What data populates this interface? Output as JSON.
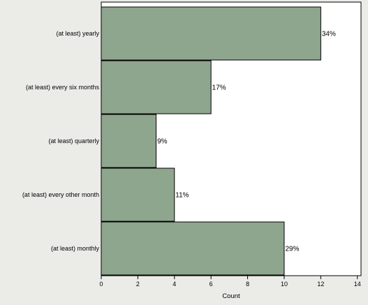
{
  "chart_data": {
    "type": "bar",
    "orientation": "horizontal",
    "categories": [
      "(at least) yearly",
      "(at least) every six months",
      "(at least) quarterly",
      "(at least) every other month",
      "(at least) monthly"
    ],
    "values": [
      12,
      6,
      3,
      4,
      10
    ],
    "data_labels": [
      "34%",
      "17%",
      "9%",
      "11%",
      "29%"
    ],
    "title": "",
    "xlabel": "Count",
    "ylabel": "",
    "xlim": [
      0,
      14.2
    ],
    "xticks": [
      0,
      2,
      4,
      6,
      8,
      10,
      12,
      14
    ],
    "xtick_labels": [
      "0",
      "2",
      "4",
      "6",
      "8",
      "10",
      "12",
      "14"
    ],
    "grid": false,
    "legend": "none",
    "colors": {
      "page_background": "#ebebe8",
      "plot_background": "#ffffff",
      "bar_fill": "#8ea68e",
      "bar_stroke": "#000000",
      "frame": "#000000"
    }
  }
}
